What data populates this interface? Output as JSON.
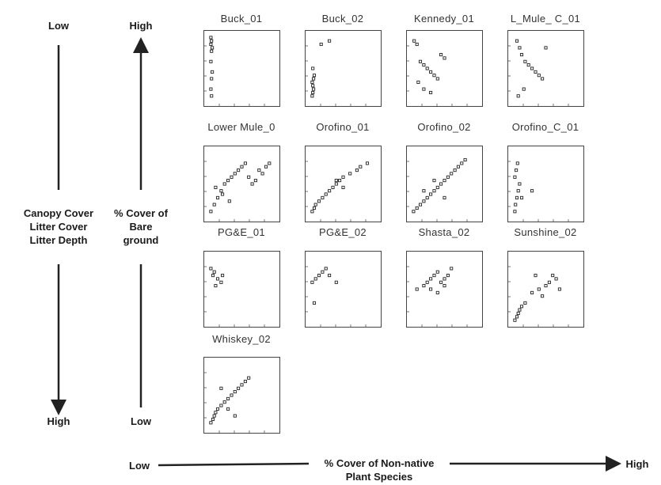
{
  "figure": {
    "left_axis": {
      "top": "Low",
      "bottom": "High",
      "labels": [
        "Canopy Cover",
        "Litter Cover",
        "Litter Depth"
      ]
    },
    "middle_axis": {
      "top": "High",
      "bottom": "Low",
      "labels": [
        "% Cover of",
        "Bare",
        "ground"
      ]
    },
    "bottom_axis": {
      "left": "Low",
      "right": "High",
      "labels": [
        "% Cover of Non-native",
        "Plant Species"
      ]
    }
  },
  "chart_data": {
    "type": "scatter",
    "grid": false,
    "panels": [
      {
        "title": "Buck_01",
        "x": [
          0.05,
          0.06,
          0.05,
          0.07,
          0.06,
          0.05,
          0.07,
          0.06,
          0.05,
          0.06
        ],
        "y": [
          0.95,
          0.9,
          0.85,
          0.8,
          0.75,
          0.6,
          0.45,
          0.35,
          0.2,
          0.1
        ]
      },
      {
        "title": "Buck_02",
        "x": [
          0.05,
          0.06,
          0.07,
          0.06,
          0.05,
          0.07,
          0.08,
          0.06,
          0.3,
          0.18
        ],
        "y": [
          0.1,
          0.15,
          0.2,
          0.25,
          0.3,
          0.35,
          0.4,
          0.5,
          0.9,
          0.85
        ]
      },
      {
        "title": "Kennedy_01",
        "x": [
          0.06,
          0.1,
          0.15,
          0.2,
          0.25,
          0.3,
          0.35,
          0.4,
          0.45,
          0.5,
          0.2,
          0.3,
          0.12
        ],
        "y": [
          0.9,
          0.85,
          0.6,
          0.55,
          0.5,
          0.45,
          0.4,
          0.35,
          0.7,
          0.65,
          0.2,
          0.15,
          0.3
        ]
      },
      {
        "title": "L_Mule_ C_01",
        "x": [
          0.08,
          0.12,
          0.15,
          0.2,
          0.25,
          0.3,
          0.35,
          0.4,
          0.45,
          0.5,
          0.18,
          0.1
        ],
        "y": [
          0.9,
          0.8,
          0.7,
          0.6,
          0.55,
          0.5,
          0.45,
          0.4,
          0.35,
          0.8,
          0.2,
          0.1
        ]
      },
      {
        "title": "Lower Mule_0",
        "x": [
          0.05,
          0.1,
          0.15,
          0.2,
          0.25,
          0.3,
          0.35,
          0.4,
          0.45,
          0.5,
          0.55,
          0.6,
          0.65,
          0.7,
          0.75,
          0.8,
          0.85,
          0.9,
          0.12,
          0.22,
          0.32
        ],
        "y": [
          0.1,
          0.2,
          0.3,
          0.4,
          0.5,
          0.55,
          0.6,
          0.65,
          0.7,
          0.75,
          0.8,
          0.6,
          0.5,
          0.55,
          0.7,
          0.65,
          0.75,
          0.8,
          0.45,
          0.35,
          0.25
        ]
      },
      {
        "title": "Orofino_01",
        "x": [
          0.05,
          0.08,
          0.1,
          0.15,
          0.2,
          0.25,
          0.3,
          0.35,
          0.4,
          0.45,
          0.5,
          0.6,
          0.7,
          0.75,
          0.85,
          0.5,
          0.4
        ],
        "y": [
          0.1,
          0.15,
          0.2,
          0.25,
          0.3,
          0.35,
          0.4,
          0.45,
          0.5,
          0.55,
          0.6,
          0.65,
          0.7,
          0.75,
          0.8,
          0.45,
          0.55
        ]
      },
      {
        "title": "Orofino_02",
        "x": [
          0.05,
          0.1,
          0.15,
          0.2,
          0.25,
          0.3,
          0.35,
          0.4,
          0.45,
          0.5,
          0.55,
          0.6,
          0.65,
          0.7,
          0.75,
          0.8,
          0.2,
          0.35,
          0.5
        ],
        "y": [
          0.1,
          0.15,
          0.2,
          0.25,
          0.3,
          0.35,
          0.4,
          0.45,
          0.5,
          0.55,
          0.6,
          0.65,
          0.7,
          0.75,
          0.8,
          0.85,
          0.4,
          0.55,
          0.3
        ]
      },
      {
        "title": "Orofino_C_01",
        "x": [
          0.05,
          0.06,
          0.08,
          0.1,
          0.12,
          0.05,
          0.07,
          0.09,
          0.3,
          0.15
        ],
        "y": [
          0.1,
          0.2,
          0.3,
          0.4,
          0.5,
          0.6,
          0.7,
          0.8,
          0.4,
          0.3
        ]
      },
      {
        "title": "PG&E_01",
        "x": [
          0.05,
          0.08,
          0.1,
          0.15,
          0.2,
          0.22,
          0.12
        ],
        "y": [
          0.8,
          0.7,
          0.75,
          0.65,
          0.6,
          0.7,
          0.55
        ]
      },
      {
        "title": "PG&E_02",
        "x": [
          0.05,
          0.1,
          0.15,
          0.2,
          0.25,
          0.3,
          0.4,
          0.08
        ],
        "y": [
          0.6,
          0.65,
          0.7,
          0.75,
          0.8,
          0.7,
          0.6,
          0.3
        ]
      },
      {
        "title": "Shasta_02",
        "x": [
          0.1,
          0.2,
          0.25,
          0.3,
          0.35,
          0.4,
          0.45,
          0.5,
          0.55,
          0.6,
          0.3,
          0.4,
          0.5
        ],
        "y": [
          0.5,
          0.55,
          0.6,
          0.65,
          0.7,
          0.75,
          0.6,
          0.65,
          0.7,
          0.8,
          0.5,
          0.45,
          0.55
        ]
      },
      {
        "title": "Sunshine_02",
        "x": [
          0.05,
          0.08,
          0.1,
          0.12,
          0.15,
          0.2,
          0.3,
          0.4,
          0.5,
          0.55,
          0.6,
          0.65,
          0.7,
          0.35,
          0.45
        ],
        "y": [
          0.05,
          0.1,
          0.15,
          0.2,
          0.25,
          0.3,
          0.45,
          0.5,
          0.55,
          0.6,
          0.7,
          0.65,
          0.5,
          0.7,
          0.4
        ]
      },
      {
        "title": "Whiskey_02",
        "x": [
          0.05,
          0.08,
          0.1,
          0.12,
          0.15,
          0.2,
          0.25,
          0.3,
          0.35,
          0.4,
          0.45,
          0.5,
          0.55,
          0.6,
          0.3,
          0.4,
          0.2
        ],
        "y": [
          0.1,
          0.15,
          0.2,
          0.25,
          0.3,
          0.35,
          0.4,
          0.45,
          0.5,
          0.55,
          0.6,
          0.65,
          0.7,
          0.75,
          0.3,
          0.2,
          0.6
        ]
      }
    ]
  }
}
